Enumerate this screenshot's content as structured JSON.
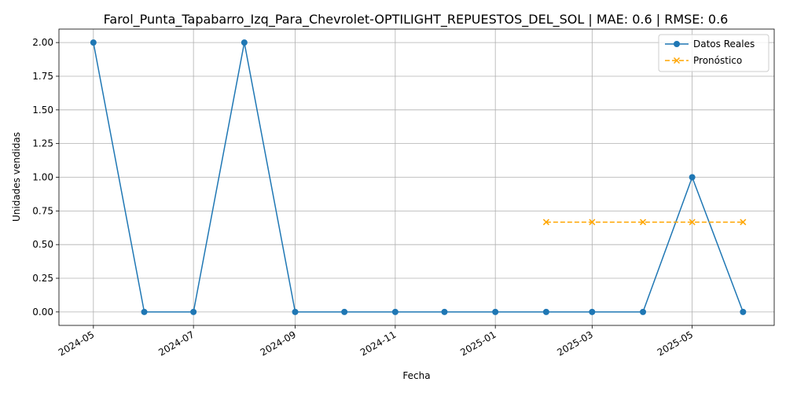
{
  "chart_data": {
    "type": "line",
    "title": "Farol_Punta_Tapabarro_Izq_Para_Chevrolet-OPTILIGHT_REPUESTOS_DEL_SOL | MAE: 0.6 | RMSE: 0.6",
    "xlabel": "Fecha",
    "ylabel": "Unidades vendidas",
    "x_range": [
      "2024-04-10",
      "2025-06-20"
    ],
    "ylim": [
      -0.1,
      2.1
    ],
    "y_ticks": [
      0.0,
      0.25,
      0.5,
      0.75,
      1.0,
      1.25,
      1.5,
      1.75,
      2.0
    ],
    "y_tick_labels": [
      "0.00",
      "0.25",
      "0.50",
      "0.75",
      "1.00",
      "1.25",
      "1.50",
      "1.75",
      "2.00"
    ],
    "x_ticks": [
      "2024-05-01",
      "2024-07-01",
      "2024-09-01",
      "2024-11-01",
      "2025-01-01",
      "2025-03-01",
      "2025-05-01"
    ],
    "x_tick_labels": [
      "2024-05",
      "2024-07",
      "2024-09",
      "2024-11",
      "2025-01",
      "2025-03",
      "2025-05"
    ],
    "grid": true,
    "legend_position": "top-right",
    "series": [
      {
        "name": "Datos Reales",
        "style": "solid",
        "marker": "circle",
        "color": "#1f77b4",
        "x": [
          "2024-05-01",
          "2024-06-01",
          "2024-07-01",
          "2024-08-01",
          "2024-09-01",
          "2024-10-01",
          "2024-11-01",
          "2024-12-01",
          "2025-01-01",
          "2025-02-01",
          "2025-03-01",
          "2025-04-01",
          "2025-05-01",
          "2025-06-01"
        ],
        "values": [
          2,
          0,
          0,
          2,
          0,
          0,
          0,
          0,
          0,
          0,
          0,
          0,
          1,
          0
        ]
      },
      {
        "name": "Pronóstico",
        "style": "dashed",
        "marker": "x",
        "color": "#ffa500",
        "x": [
          "2025-02-01",
          "2025-03-01",
          "2025-04-01",
          "2025-05-01",
          "2025-06-01"
        ],
        "values": [
          0.667,
          0.667,
          0.667,
          0.667,
          0.667
        ]
      }
    ]
  }
}
